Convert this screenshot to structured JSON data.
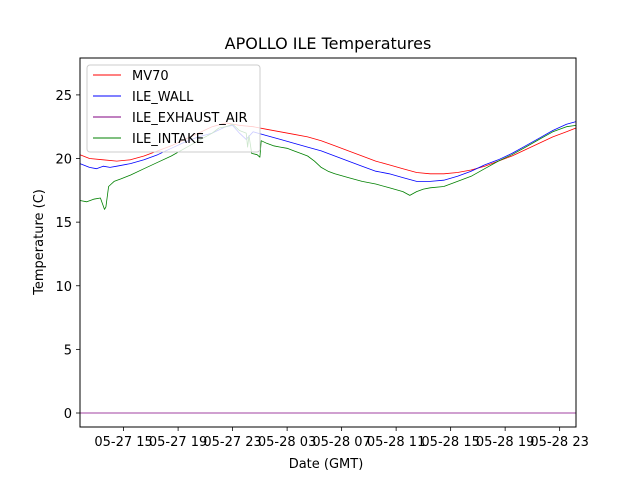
{
  "chart_data": {
    "type": "line",
    "title": "APOLLO ILE Temperatures",
    "xlabel": "Date (GMT)",
    "ylabel": "Temperature (C)",
    "x_unit": "hours since 05-27 00:00 GMT",
    "xlim": [
      11.8,
      48.2
    ],
    "ylim": [
      -1.1,
      27.9
    ],
    "x_ticks": [
      {
        "value": 15,
        "label": "05-27 15"
      },
      {
        "value": 19,
        "label": "05-27 19"
      },
      {
        "value": 23,
        "label": "05-27 23"
      },
      {
        "value": 27,
        "label": "05-28 03"
      },
      {
        "value": 31,
        "label": "05-28 07"
      },
      {
        "value": 35,
        "label": "05-28 11"
      },
      {
        "value": 39,
        "label": "05-28 15"
      },
      {
        "value": 43,
        "label": "05-28 19"
      },
      {
        "value": 47,
        "label": "05-28 23"
      }
    ],
    "y_ticks": [
      0,
      5,
      10,
      15,
      20,
      25
    ],
    "legend_position": "upper-left",
    "series": [
      {
        "name": "MV70",
        "color": "#ff0000",
        "x": [
          11.8,
          12.5,
          13.5,
          14.5,
          15.5,
          16.5,
          17.5,
          18.5,
          19.5,
          20.5,
          21.5,
          22.5,
          23.5,
          24.5,
          25.5,
          26.5,
          27.5,
          28.5,
          29.5,
          30.5,
          31.5,
          32.5,
          33.5,
          34.5,
          35.5,
          36.5,
          37.5,
          38.5,
          39.5,
          40.5,
          41.5,
          42.5,
          43.5,
          44.5,
          45.5,
          46.5,
          47.5,
          48.2
        ],
        "y": [
          20.3,
          20.0,
          19.9,
          19.8,
          19.9,
          20.2,
          20.6,
          21.0,
          21.5,
          22.0,
          22.5,
          22.8,
          22.6,
          22.5,
          22.3,
          22.1,
          21.9,
          21.7,
          21.4,
          21.0,
          20.6,
          20.2,
          19.8,
          19.5,
          19.2,
          18.9,
          18.8,
          18.8,
          18.9,
          19.1,
          19.4,
          19.8,
          20.2,
          20.7,
          21.2,
          21.7,
          22.1,
          22.4
        ]
      },
      {
        "name": "ILE_WALL",
        "color": "#0000ff",
        "x": [
          11.8,
          12.5,
          13.0,
          13.5,
          14.0,
          14.5,
          15.5,
          16.5,
          17.5,
          18.5,
          19.5,
          20.5,
          21.5,
          22.5,
          23.0,
          23.5,
          24.0,
          24.5,
          25.5,
          26.5,
          27.5,
          28.5,
          29.5,
          30.5,
          31.5,
          32.5,
          33.5,
          34.5,
          35.5,
          36.5,
          37.5,
          38.5,
          39.5,
          40.5,
          41.5,
          42.5,
          43.5,
          44.5,
          45.5,
          46.5,
          47.5,
          48.2
        ],
        "y": [
          19.6,
          19.3,
          19.2,
          19.4,
          19.3,
          19.4,
          19.6,
          19.9,
          20.3,
          20.8,
          21.3,
          21.7,
          22.0,
          22.5,
          22.6,
          22.0,
          21.5,
          22.1,
          21.8,
          21.5,
          21.2,
          20.9,
          20.6,
          20.2,
          19.8,
          19.4,
          19.0,
          18.8,
          18.5,
          18.2,
          18.2,
          18.3,
          18.6,
          19.0,
          19.5,
          19.9,
          20.4,
          21.0,
          21.6,
          22.2,
          22.7,
          22.9
        ]
      },
      {
        "name": "ILE_EXHAUST_AIR",
        "color": "#800080",
        "x": [
          11.8,
          48.2
        ],
        "y": [
          0.0,
          0.0
        ]
      },
      {
        "name": "ILE_INTAKE",
        "color": "#008000",
        "x": [
          11.8,
          12.3,
          12.8,
          13.3,
          13.6,
          13.7,
          13.9,
          14.1,
          14.3,
          14.8,
          15.5,
          16.5,
          17.5,
          18.5,
          19.5,
          20.5,
          21.5,
          22.0,
          22.5,
          23.0,
          23.5,
          24.0,
          24.1,
          24.2,
          24.4,
          24.8,
          25.0,
          25.1,
          25.5,
          26.0,
          26.5,
          27.0,
          27.5,
          28.0,
          28.5,
          29.0,
          29.5,
          30.0,
          30.5,
          31.5,
          32.5,
          33.5,
          34.5,
          35.5,
          36.0,
          36.5,
          37.0,
          37.5,
          38.5,
          39.5,
          40.5,
          41.5,
          42.5,
          43.5,
          44.5,
          45.5,
          46.5,
          47.5,
          48.2
        ],
        "y": [
          16.7,
          16.6,
          16.8,
          16.9,
          16.0,
          16.2,
          17.8,
          18.0,
          18.2,
          18.4,
          18.7,
          19.2,
          19.7,
          20.2,
          20.8,
          21.4,
          22.0,
          22.4,
          22.5,
          22.7,
          22.2,
          22.0,
          20.9,
          21.8,
          20.4,
          20.3,
          20.1,
          21.4,
          21.2,
          21.0,
          20.9,
          20.8,
          20.6,
          20.4,
          20.2,
          19.8,
          19.3,
          19.0,
          18.8,
          18.5,
          18.2,
          18.0,
          17.7,
          17.4,
          17.1,
          17.4,
          17.6,
          17.7,
          17.8,
          18.2,
          18.6,
          19.2,
          19.8,
          20.3,
          20.9,
          21.5,
          22.1,
          22.5,
          22.6
        ]
      }
    ]
  }
}
